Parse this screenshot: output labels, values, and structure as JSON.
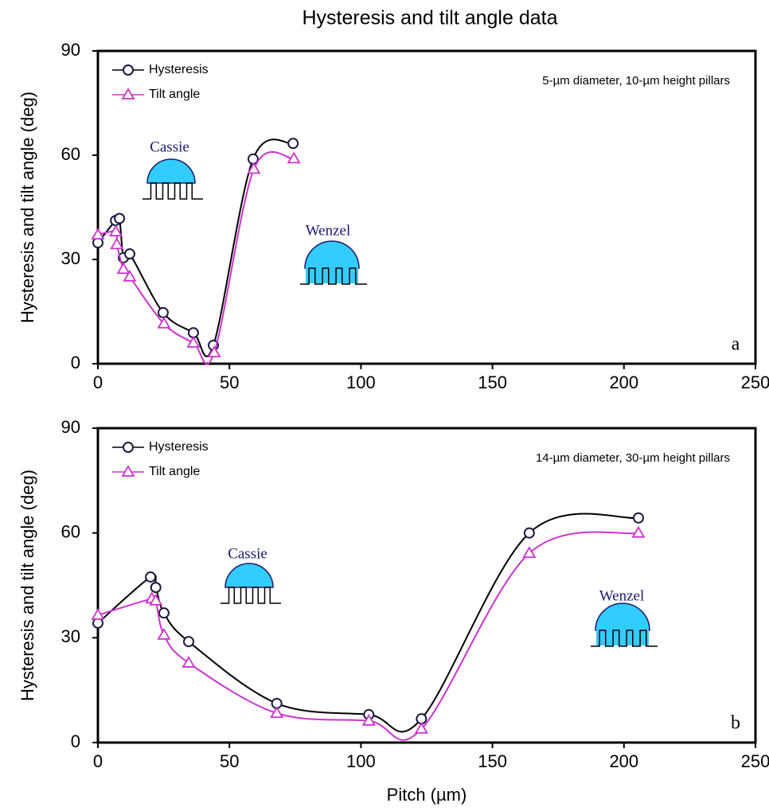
{
  "chart_data": [
    {
      "type": "line",
      "title": "Hysteresis and tilt angle data",
      "ylabel": "Hysteresis and tilt angle (deg)",
      "xlim": [
        0,
        250
      ],
      "xticks": [
        0,
        50,
        100,
        150,
        200,
        250
      ],
      "ylim": [
        0,
        90
      ],
      "yticks": [
        0,
        30,
        60,
        90
      ],
      "grid": false,
      "legend": "upper left",
      "annotations": [
        "5-µm diameter, 10-µm height pillars",
        "Cassie",
        "Wenzel",
        "a"
      ],
      "series": [
        {
          "name": "Hysteresis",
          "color": "#000000",
          "marker": "circle",
          "x": [
            0,
            6.7,
            8.2,
            9.7,
            12.1,
            24.8,
            36.3,
            43.9,
            59,
            74.2
          ],
          "values": [
            34.8,
            41.2,
            41.8,
            30.5,
            31.6,
            14.7,
            8.9,
            5.3,
            58.9,
            63.4
          ]
        },
        {
          "name": "Tilt angle",
          "color": "#cc33cc",
          "marker": "triangle",
          "x": [
            0,
            6.8,
            7.2,
            9.7,
            12.1,
            25.1,
            36.3,
            44.2,
            59.3,
            74.5
          ],
          "values": [
            37.1,
            38,
            34.3,
            27.2,
            25,
            11.5,
            6,
            3.2,
            56,
            59
          ]
        }
      ]
    },
    {
      "type": "line",
      "ylabel": "Hysteresis and tilt angle (deg)",
      "xlabel": "Pitch (µm)",
      "xlim": [
        0,
        250
      ],
      "xticks": [
        0,
        50,
        100,
        150,
        200,
        250
      ],
      "ylim": [
        0,
        90
      ],
      "yticks": [
        0,
        30,
        60,
        90
      ],
      "grid": false,
      "legend": "upper left",
      "annotations": [
        "14-µm diameter, 30-µm height pillars",
        "Cassie",
        "Wenzel",
        "b"
      ],
      "series": [
        {
          "name": "Hysteresis",
          "color": "#000000",
          "marker": "circle",
          "x": [
            0,
            20,
            22,
            25.1,
            34.5,
            68,
            103,
            123,
            164,
            205.5
          ],
          "values": [
            34.2,
            47.4,
            44.4,
            37.1,
            28.9,
            11.2,
            8,
            6.8,
            60,
            64.3
          ]
        },
        {
          "name": "Tilt angle",
          "color": "#cc33cc",
          "marker": "triangle",
          "x": [
            0,
            20.5,
            22,
            25.1,
            34.5,
            68,
            103,
            123,
            164,
            205.5
          ],
          "values": [
            36.5,
            41.2,
            40.6,
            30.8,
            22.8,
            8.4,
            6.2,
            3.9,
            54.2,
            60
          ]
        }
      ]
    }
  ]
}
